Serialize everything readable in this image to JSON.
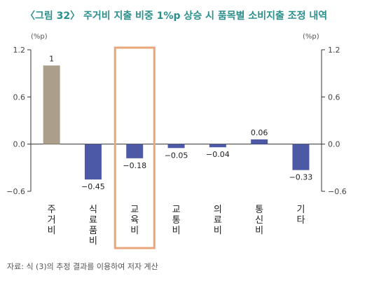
{
  "title": "〈그림 32〉 주거비 지출 비중 1%p 상승 시 품목별 소비지출 조정 내역",
  "source": "자료: 식 (3)의 추정 결과를 이용하여 저자 계산",
  "colors": {
    "title": "#2b8f8c",
    "housing_bar": "#ab9e8b",
    "other_bar": "#4c5aa6",
    "highlight_box": "#e8a67a",
    "axis": "#333333"
  },
  "chart_data": {
    "type": "bar",
    "categories": [
      "주거비",
      "식료품비",
      "교육비",
      "교통비",
      "의료비",
      "통신비",
      "기타"
    ],
    "values": [
      1,
      -0.45,
      -0.18,
      -0.05,
      -0.04,
      0.06,
      -0.33
    ],
    "value_labels": [
      "1",
      "−0.45",
      "−0.18",
      "−0.05",
      "−0.04",
      "0.06",
      "−0.33"
    ],
    "category_display_lines": [
      [
        "주",
        "거",
        "비"
      ],
      [
        "식",
        "료",
        "품",
        "비"
      ],
      [
        "교",
        "육",
        "비"
      ],
      [
        "교",
        "통",
        "비"
      ],
      [
        "의",
        "료",
        "비"
      ],
      [
        "통",
        "신",
        "비"
      ],
      [
        "기",
        "타"
      ]
    ],
    "y_ticks": [
      1.2,
      0.6,
      0.0,
      -0.6
    ],
    "y_tick_labels_left": [
      "1.2",
      "0.6",
      "0.0",
      "−0.6"
    ],
    "y_tick_labels_right": [
      "1.2",
      "0.6",
      "0.0",
      "−0.6"
    ],
    "ylim": [
      -0.6,
      1.2
    ],
    "y_unit_left": "(%p)",
    "y_unit_right": "(%p)",
    "highlight_category": "교육비",
    "grid": false,
    "legend": "none"
  }
}
